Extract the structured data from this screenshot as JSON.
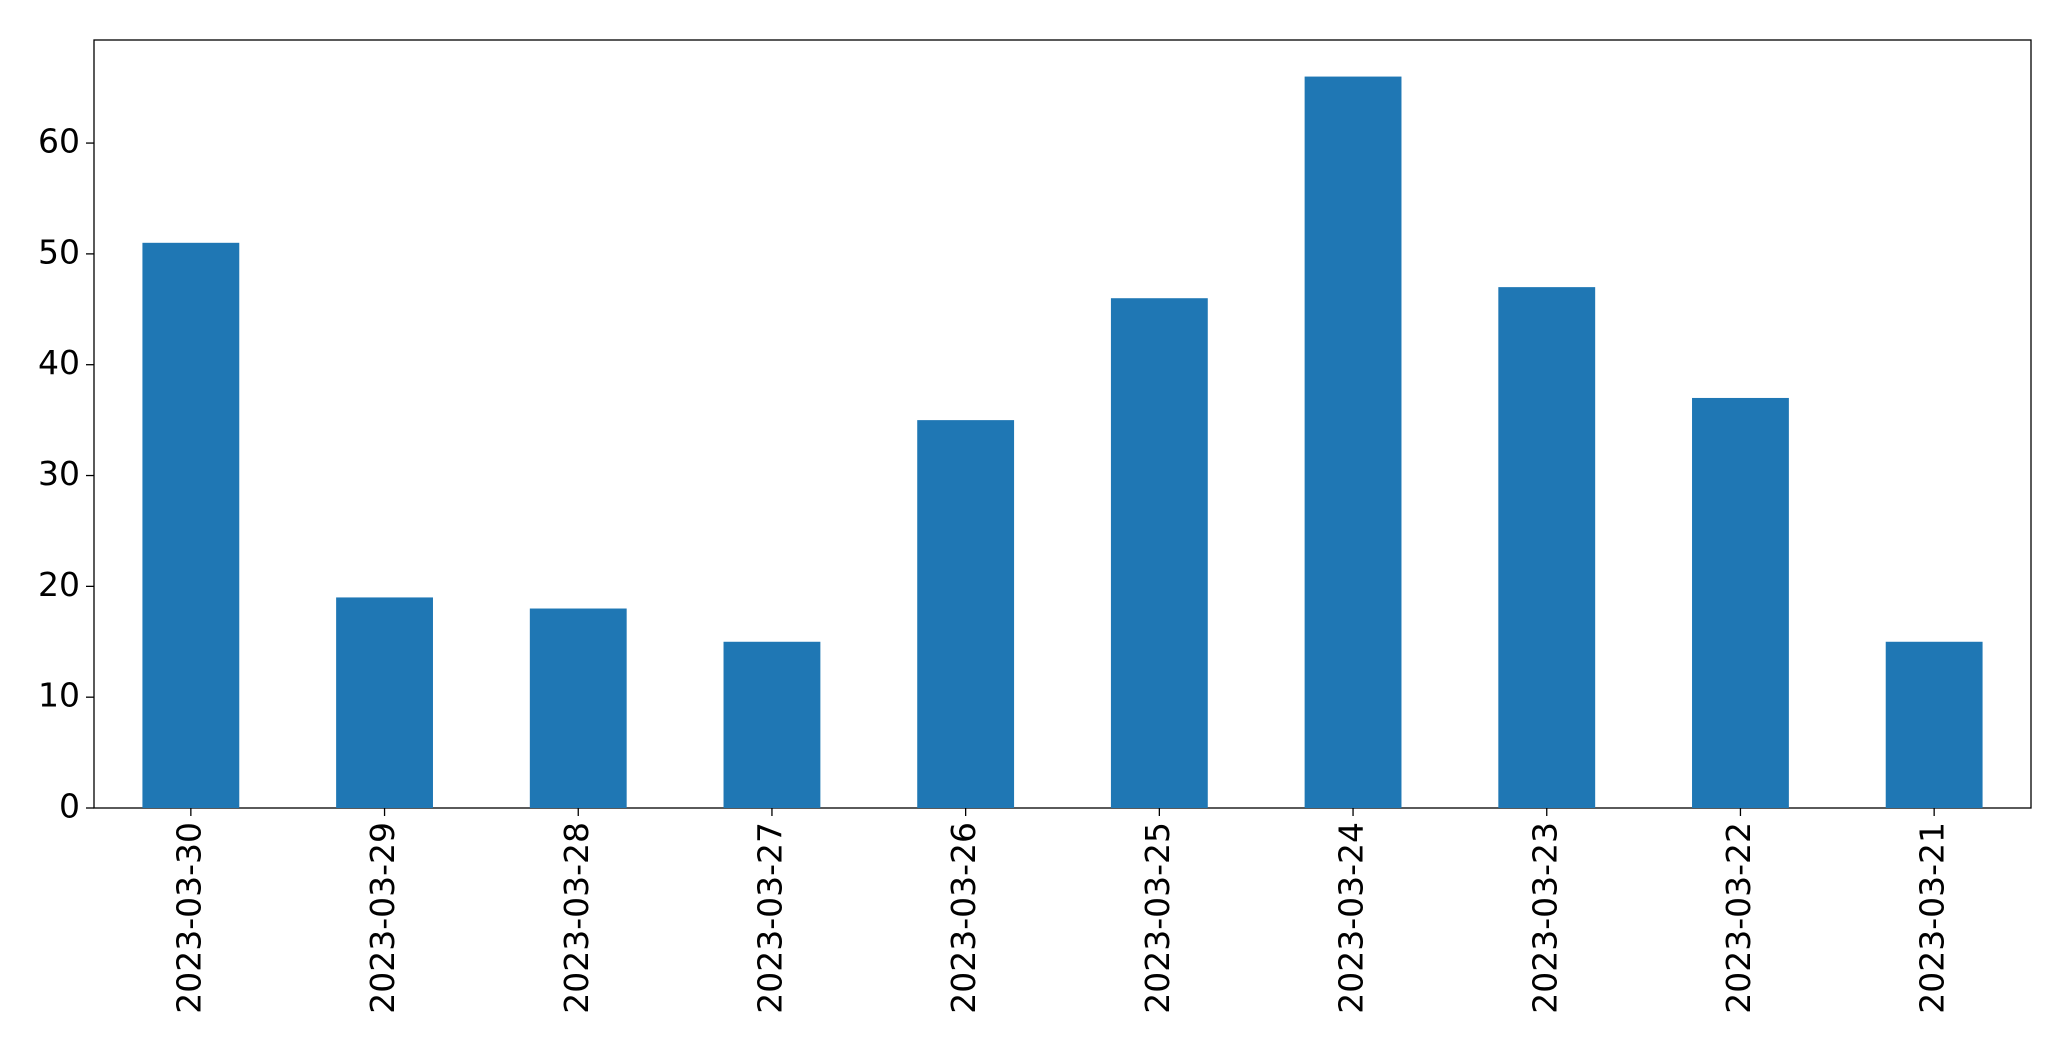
{
  "chart_data": {
    "type": "bar",
    "categories": [
      "2023-03-30",
      "2023-03-29",
      "2023-03-28",
      "2023-03-27",
      "2023-03-26",
      "2023-03-25",
      "2023-03-24",
      "2023-03-23",
      "2023-03-22",
      "2023-03-21"
    ],
    "values": [
      51,
      19,
      18,
      15,
      35,
      46,
      66,
      47,
      37,
      15
    ],
    "color": "#1f77b4",
    "ylim": [
      0,
      69.3
    ],
    "yticks": [
      0,
      10,
      20,
      30,
      40,
      50,
      60
    ],
    "grid": false
  }
}
